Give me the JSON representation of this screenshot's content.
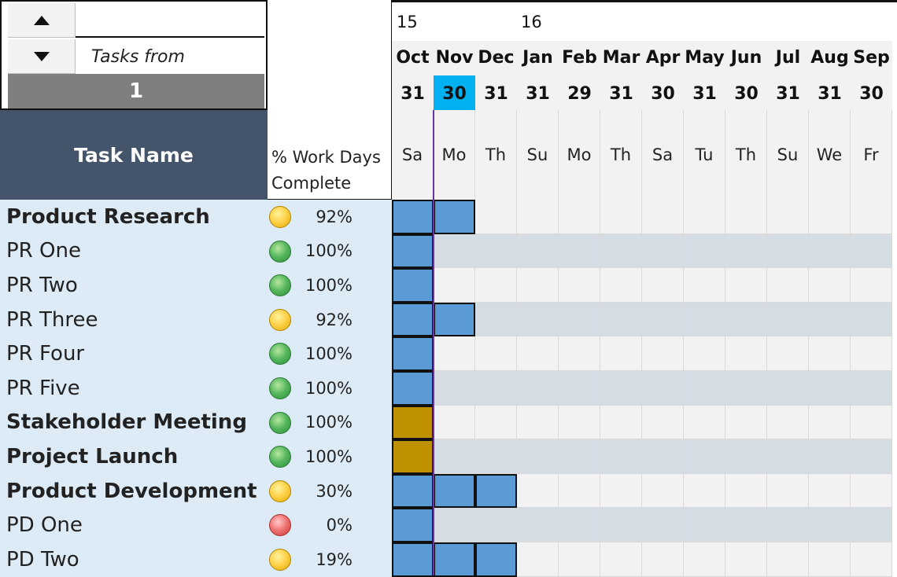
{
  "nav": {
    "up_label": "up",
    "down_label": "down",
    "tasks_from_label": "Tasks from",
    "start_index": "1"
  },
  "headers": {
    "task_name": "Task Name",
    "pct_line1": "% Work Days",
    "pct_line2": "Complete"
  },
  "years": [
    "15",
    "16"
  ],
  "months": [
    "Oct",
    "Nov",
    "Dec",
    "Jan",
    "Feb",
    "Mar",
    "Apr",
    "May",
    "Jun",
    "Jul",
    "Aug",
    "Sep"
  ],
  "days": [
    "31",
    "30",
    "31",
    "31",
    "29",
    "31",
    "30",
    "31",
    "30",
    "31",
    "31",
    "30"
  ],
  "weekdays": [
    "Sa",
    "Mo",
    "Th",
    "Su",
    "Mo",
    "Th",
    "Sa",
    "Tu",
    "Th",
    "Su",
    "We",
    "Fr"
  ],
  "selected_column": 1,
  "tasks": [
    {
      "name": "Product Research",
      "bold": true,
      "pct": "92%",
      "status": "yellow",
      "bar_cols": 2,
      "bar_color": "blue"
    },
    {
      "name": "PR One",
      "bold": false,
      "pct": "100%",
      "status": "green",
      "bar_cols": 1,
      "bar_color": "blue"
    },
    {
      "name": "PR Two",
      "bold": false,
      "pct": "100%",
      "status": "green",
      "bar_cols": 1,
      "bar_color": "blue"
    },
    {
      "name": "PR Three",
      "bold": false,
      "pct": "92%",
      "status": "yellow",
      "bar_cols": 2,
      "bar_color": "blue"
    },
    {
      "name": "PR Four",
      "bold": false,
      "pct": "100%",
      "status": "green",
      "bar_cols": 1,
      "bar_color": "blue"
    },
    {
      "name": "PR Five",
      "bold": false,
      "pct": "100%",
      "status": "green",
      "bar_cols": 1,
      "bar_color": "blue"
    },
    {
      "name": "Stakeholder Meeting",
      "bold": true,
      "pct": "100%",
      "status": "green",
      "bar_cols": 1,
      "bar_color": "gold"
    },
    {
      "name": "Project Launch",
      "bold": true,
      "pct": "100%",
      "status": "green",
      "bar_cols": 1,
      "bar_color": "gold"
    },
    {
      "name": "Product Development",
      "bold": true,
      "pct": "30%",
      "status": "yellow",
      "bar_cols": 3,
      "bar_color": "blue"
    },
    {
      "name": "PD One",
      "bold": false,
      "pct": "0%",
      "status": "red",
      "bar_cols": 1,
      "bar_color": "blue"
    },
    {
      "name": "PD Two",
      "bold": false,
      "pct": "19%",
      "status": "yellow",
      "bar_cols": 3,
      "bar_color": "blue"
    }
  ],
  "colors": {
    "header_dark": "#44546a",
    "task_bg": "#ddebf7",
    "row_alt": "#d6dce4",
    "bar_blue": "#5b9bd5",
    "bar_gold": "#bf9000",
    "today_line": "#7030a0",
    "selected_day": "#00b0f0"
  }
}
